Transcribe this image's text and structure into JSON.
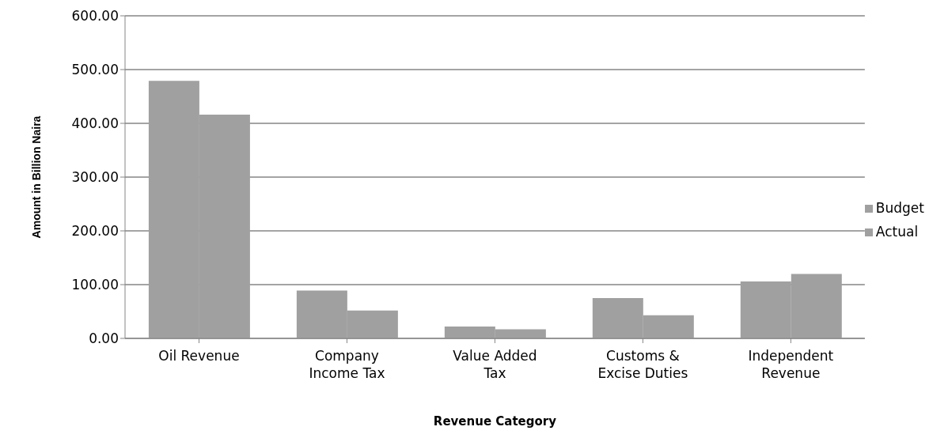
{
  "chart_data": {
    "type": "bar",
    "xlabel": "Revenue Category",
    "ylabel": "Amount in Billion Naira",
    "categories": [
      "Oil Revenue",
      "Company Income Tax",
      "Value Added Tax",
      "Customs & Excise Duties",
      "Independent Revenue"
    ],
    "series": [
      {
        "name": "Budget",
        "color": "#a0a0a0",
        "values": [
          479,
          89,
          22,
          75,
          106
        ]
      },
      {
        "name": "Actual",
        "color": "#a0a0a0",
        "values": [
          416,
          52,
          17,
          43,
          120
        ]
      }
    ],
    "ylim": [
      0,
      600
    ],
    "yticks": [
      {
        "value": 0,
        "label": "0.00"
      },
      {
        "value": 100,
        "label": "100.00"
      },
      {
        "value": 200,
        "label": "200.00"
      },
      {
        "value": 300,
        "label": "300.00"
      },
      {
        "value": 400,
        "label": "400.00"
      },
      {
        "value": 500,
        "label": "500.00"
      },
      {
        "value": 600,
        "label": "600.00"
      }
    ],
    "grid": "y",
    "legend": "right"
  }
}
